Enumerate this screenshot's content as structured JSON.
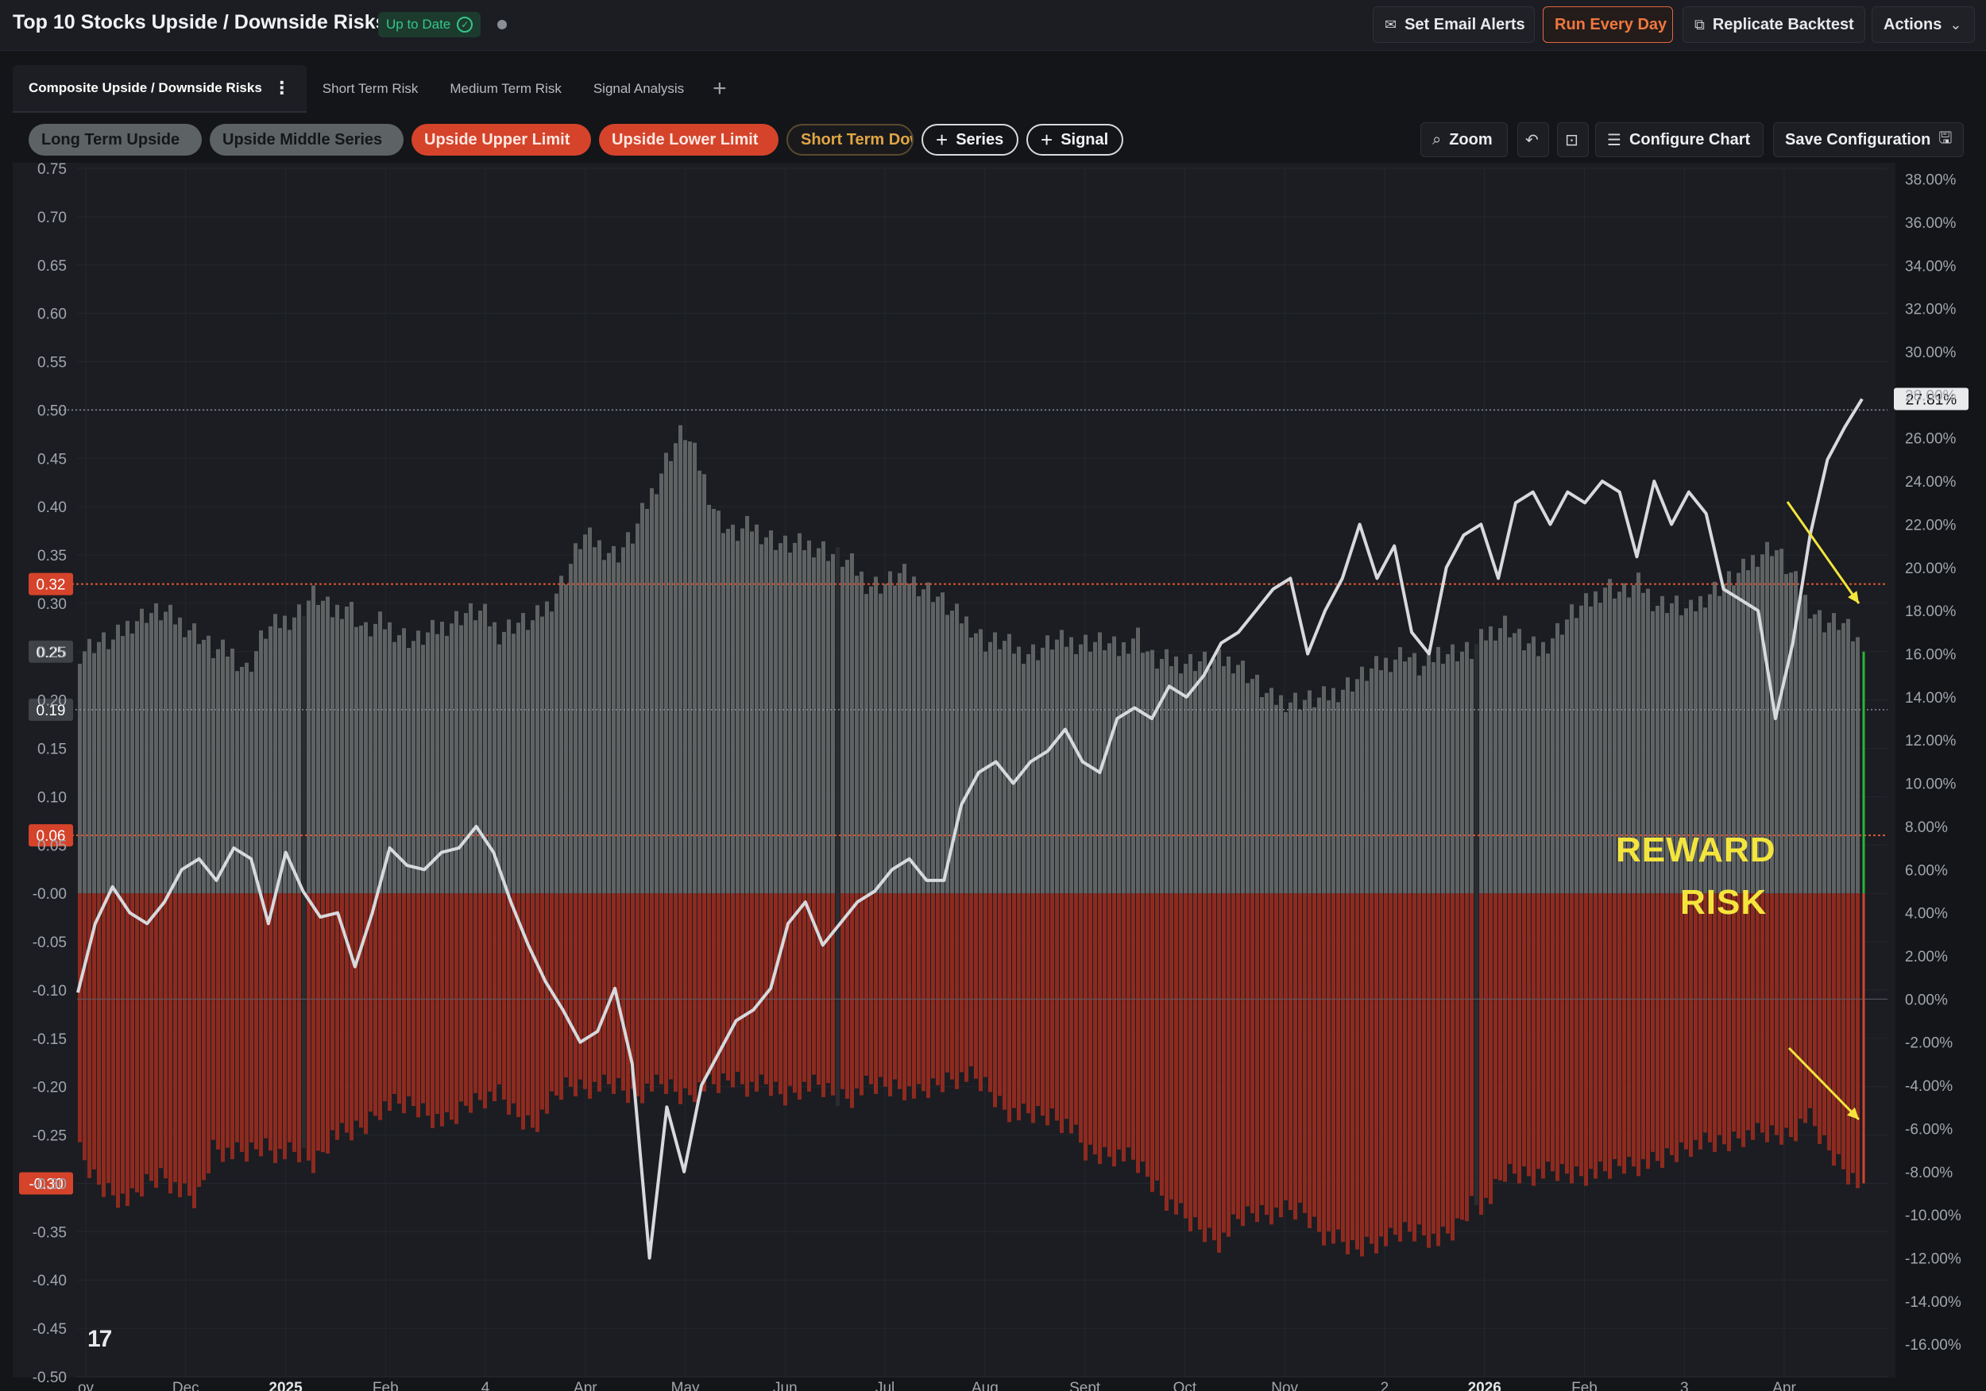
{
  "header": {
    "title": "Top 10 Stocks Upside / Downside Risks",
    "status": "Up to Date",
    "buttons": {
      "email": "Set Email Alerts",
      "run": "Run Every Day",
      "replicate": "Replicate Backtest",
      "actions": "Actions"
    }
  },
  "tabs": [
    {
      "label": "Composite Upside / Downside Risks",
      "active": true
    },
    {
      "label": "Short Term Risk",
      "active": false
    },
    {
      "label": "Medium Term Risk",
      "active": false
    },
    {
      "label": "Signal Analysis",
      "active": false
    }
  ],
  "series_chips": [
    {
      "label": "Long Term Upside",
      "style": "gray"
    },
    {
      "label": "Upside Middle Series",
      "style": "gray"
    },
    {
      "label": "Upside Upper Limit",
      "style": "red"
    },
    {
      "label": "Upside Lower Limit",
      "style": "red"
    },
    {
      "label": "Short Term Dow",
      "style": "outline"
    }
  ],
  "add_buttons": {
    "series": "Series",
    "signal": "Signal"
  },
  "toolbar": {
    "zoom": "Zoom",
    "configure": "Configure Chart",
    "save": "Save Configuration"
  },
  "colors": {
    "background": "#131519",
    "upside_bar": "#5f6263",
    "downside_bar": "#8e2a1f",
    "line": "#d7d9dd",
    "limit_line": "#e0552f",
    "annotation": "#f4e53c",
    "reward_marker": "#2bb53a"
  },
  "chart_data": {
    "type": "bar",
    "x_labels": [
      "ov",
      "Dec",
      "2025",
      "Feb",
      "4",
      "Apr",
      "May",
      "Jun",
      "Jul",
      "Aug",
      "Sept",
      "Oct",
      "Nov",
      "2",
      "2026",
      "Feb",
      "3",
      "Apr"
    ],
    "left_axis": {
      "ylim": [
        -0.5,
        0.75
      ],
      "ticks": [
        "0.75",
        "0.70",
        "0.65",
        "0.60",
        "0.55",
        "0.50",
        "0.45",
        "0.40",
        "0.35",
        "0.30",
        "0.25",
        "0.20",
        "0.15",
        "0.10",
        "0.05",
        "-0.00",
        "-0.05",
        "-0.10",
        "-0.15",
        "-0.20",
        "-0.25",
        "-0.30",
        "-0.35",
        "-0.40",
        "-0.45",
        "-0.50"
      ]
    },
    "right_axis": {
      "ylim": [
        -17.5,
        38.5
      ],
      "unit": "%",
      "ticks": [
        "38.00%",
        "36.00%",
        "34.00%",
        "32.00%",
        "30.00%",
        "28.00%",
        "26.00%",
        "24.00%",
        "22.00%",
        "20.00%",
        "18.00%",
        "16.00%",
        "14.00%",
        "12.00%",
        "10.00%",
        "8.00%",
        "6.00%",
        "4.00%",
        "2.00%",
        "0.00%",
        "-2.00%",
        "-4.00%",
        "-6.00%",
        "-8.00%",
        "-10.00%",
        "-12.00%",
        "-14.00%",
        "-16.00%"
      ]
    },
    "reference_lines": [
      {
        "value": 0.32,
        "label": "0.32",
        "style": "dotted-red"
      },
      {
        "value": 0.06,
        "label": "0.06",
        "style": "dotted-red"
      },
      {
        "value": 0.19,
        "label": "0.19",
        "style": "dotted-gray"
      },
      {
        "value": 0.25,
        "label": "0.25",
        "style": "badge"
      },
      {
        "value": -0.3,
        "label": "-0.30",
        "style": "badge-red"
      },
      {
        "value": 0.5,
        "style": "dotted-gray"
      }
    ],
    "last_value_label": "27.81%",
    "upside_weekly": [
      0.25,
      0.26,
      0.26,
      0.28,
      0.29,
      0.29,
      0.28,
      0.27,
      0.25,
      0.25,
      0.23,
      0.27,
      0.28,
      0.29,
      0.31,
      0.29,
      0.3,
      0.27,
      0.28,
      0.27,
      0.26,
      0.27,
      0.28,
      0.29,
      0.29,
      0.27,
      0.28,
      0.28,
      0.3,
      0.33,
      0.37,
      0.36,
      0.35,
      0.37,
      0.41,
      0.45,
      0.48,
      0.44,
      0.39,
      0.37,
      0.38,
      0.37,
      0.36,
      0.36,
      0.36,
      0.35,
      0.34,
      0.32,
      0.32,
      0.33,
      0.32,
      0.31,
      0.29,
      0.28,
      0.26,
      0.26,
      0.25,
      0.25,
      0.26,
      0.26,
      0.26,
      0.26,
      0.25,
      0.27,
      0.24,
      0.24,
      0.24,
      0.24,
      0.24,
      0.24,
      0.22,
      0.2,
      0.2,
      0.2,
      0.2,
      0.21,
      0.22,
      0.23,
      0.24,
      0.25,
      0.23,
      0.25,
      0.25,
      0.25,
      0.27,
      0.28,
      0.26,
      0.25,
      0.27,
      0.29,
      0.3,
      0.32,
      0.31,
      0.32,
      0.3,
      0.3,
      0.29,
      0.31,
      0.32,
      0.33,
      0.35,
      0.36,
      0.33,
      0.3,
      0.28,
      0.28,
      0.26
    ],
    "downside_weekly": [
      -0.27,
      -0.3,
      -0.31,
      -0.32,
      -0.3,
      -0.29,
      -0.31,
      -0.32,
      -0.26,
      -0.27,
      -0.27,
      -0.26,
      -0.27,
      -0.27,
      -0.28,
      -0.25,
      -0.25,
      -0.24,
      -0.22,
      -0.22,
      -0.22,
      -0.23,
      -0.24,
      -0.22,
      -0.21,
      -0.21,
      -0.23,
      -0.24,
      -0.22,
      -0.2,
      -0.2,
      -0.2,
      -0.2,
      -0.21,
      -0.2,
      -0.2,
      -0.21,
      -0.2,
      -0.2,
      -0.19,
      -0.2,
      -0.2,
      -0.21,
      -0.2,
      -0.2,
      -0.21,
      -0.21,
      -0.2,
      -0.2,
      -0.2,
      -0.21,
      -0.2,
      -0.19,
      -0.19,
      -0.2,
      -0.22,
      -0.23,
      -0.23,
      -0.23,
      -0.24,
      -0.27,
      -0.27,
      -0.27,
      -0.28,
      -0.3,
      -0.32,
      -0.34,
      -0.35,
      -0.36,
      -0.34,
      -0.33,
      -0.33,
      -0.33,
      -0.33,
      -0.35,
      -0.36,
      -0.37,
      -0.36,
      -0.36,
      -0.35,
      -0.35,
      -0.36,
      -0.35,
      -0.32,
      -0.32,
      -0.29,
      -0.29,
      -0.29,
      -0.29,
      -0.29,
      -0.29,
      -0.29,
      -0.28,
      -0.28,
      -0.28,
      -0.27,
      -0.26,
      -0.26,
      -0.26,
      -0.25,
      -0.25,
      -0.25,
      -0.25,
      -0.23,
      -0.26,
      -0.28,
      -0.3
    ],
    "line_pct": [
      0.3,
      3.5,
      5.2,
      4.0,
      3.5,
      4.5,
      6.0,
      6.5,
      5.5,
      7.0,
      6.5,
      3.5,
      6.8,
      5.0,
      3.8,
      4.0,
      1.5,
      4.0,
      7.0,
      6.2,
      6.0,
      6.8,
      7.0,
      8.0,
      6.8,
      4.5,
      2.5,
      0.8,
      -0.5,
      -2.0,
      -1.5,
      0.5,
      -3.0,
      -12.0,
      -5.0,
      -8.0,
      -4.0,
      -2.5,
      -1.0,
      -0.5,
      0.5,
      3.5,
      4.5,
      2.5,
      3.5,
      4.5,
      5.0,
      6.0,
      6.5,
      5.5,
      5.5,
      9.0,
      10.5,
      11.0,
      10.0,
      11.0,
      11.5,
      12.5,
      11.0,
      10.5,
      13.0,
      13.5,
      13.0,
      14.5,
      14.0,
      15.0,
      16.5,
      17.0,
      18.0,
      19.0,
      19.5,
      16.0,
      18.0,
      19.5,
      22.0,
      19.5,
      21.0,
      17.0,
      16.0,
      20.0,
      21.5,
      22.0,
      19.5,
      23.0,
      23.5,
      22.0,
      23.5,
      23.0,
      24.0,
      23.5,
      20.5,
      24.0,
      22.0,
      23.5,
      22.5,
      19.0,
      18.5,
      18.0,
      13.0,
      16.5,
      21.5,
      25.0,
      26.5,
      27.81
    ]
  },
  "annotations": {
    "reward": "REWARD",
    "risk": "RISK"
  },
  "logo_text": "17"
}
